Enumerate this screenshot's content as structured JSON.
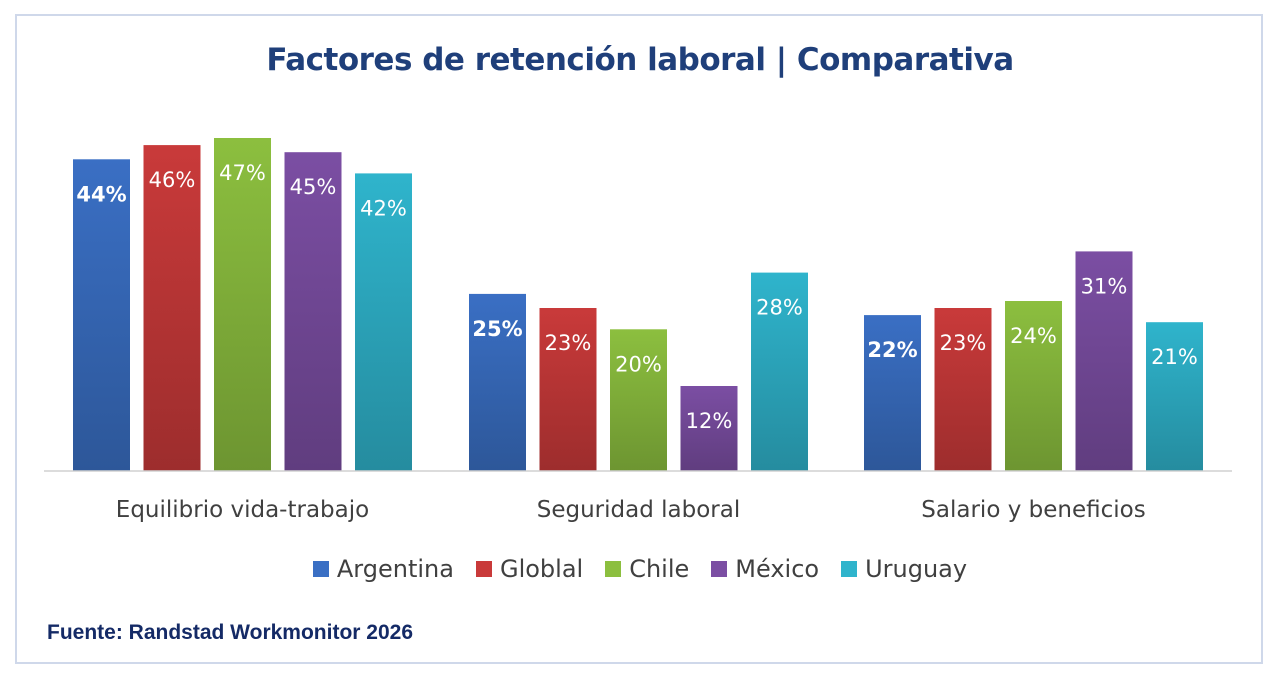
{
  "chart_data": {
    "type": "bar",
    "title": "Factores de retención laboral | Comparativa",
    "categories": [
      "Equilibrio vida-trabajo",
      "Seguridad laboral",
      "Salario y beneficios"
    ],
    "series": [
      {
        "name": "Argentina",
        "color": "#3a6fc4",
        "values": [
          44,
          25,
          22
        ],
        "labels": [
          "44%",
          "25%",
          "22%"
        ]
      },
      {
        "name": "Globlal",
        "color": "#c93a3a",
        "values": [
          46,
          23,
          23
        ],
        "labels": [
          "46%",
          "23%",
          "23%"
        ]
      },
      {
        "name": "Chile",
        "color": "#8cbf3f",
        "values": [
          47,
          20,
          24
        ],
        "labels": [
          "47%",
          "20%",
          "24%"
        ]
      },
      {
        "name": "México",
        "color": "#7b4ea3",
        "values": [
          45,
          12,
          31
        ],
        "labels": [
          "45%",
          "12%",
          "31%"
        ]
      },
      {
        "name": "Uruguay",
        "color": "#2fb4cc",
        "values": [
          42,
          28,
          21
        ],
        "labels": [
          "42%",
          "28%",
          "21%"
        ]
      }
    ],
    "ylim": [
      0,
      47
    ],
    "grid": false,
    "legend": "bottom"
  },
  "source": "Fuente: Randstad Workmonitor 2026"
}
